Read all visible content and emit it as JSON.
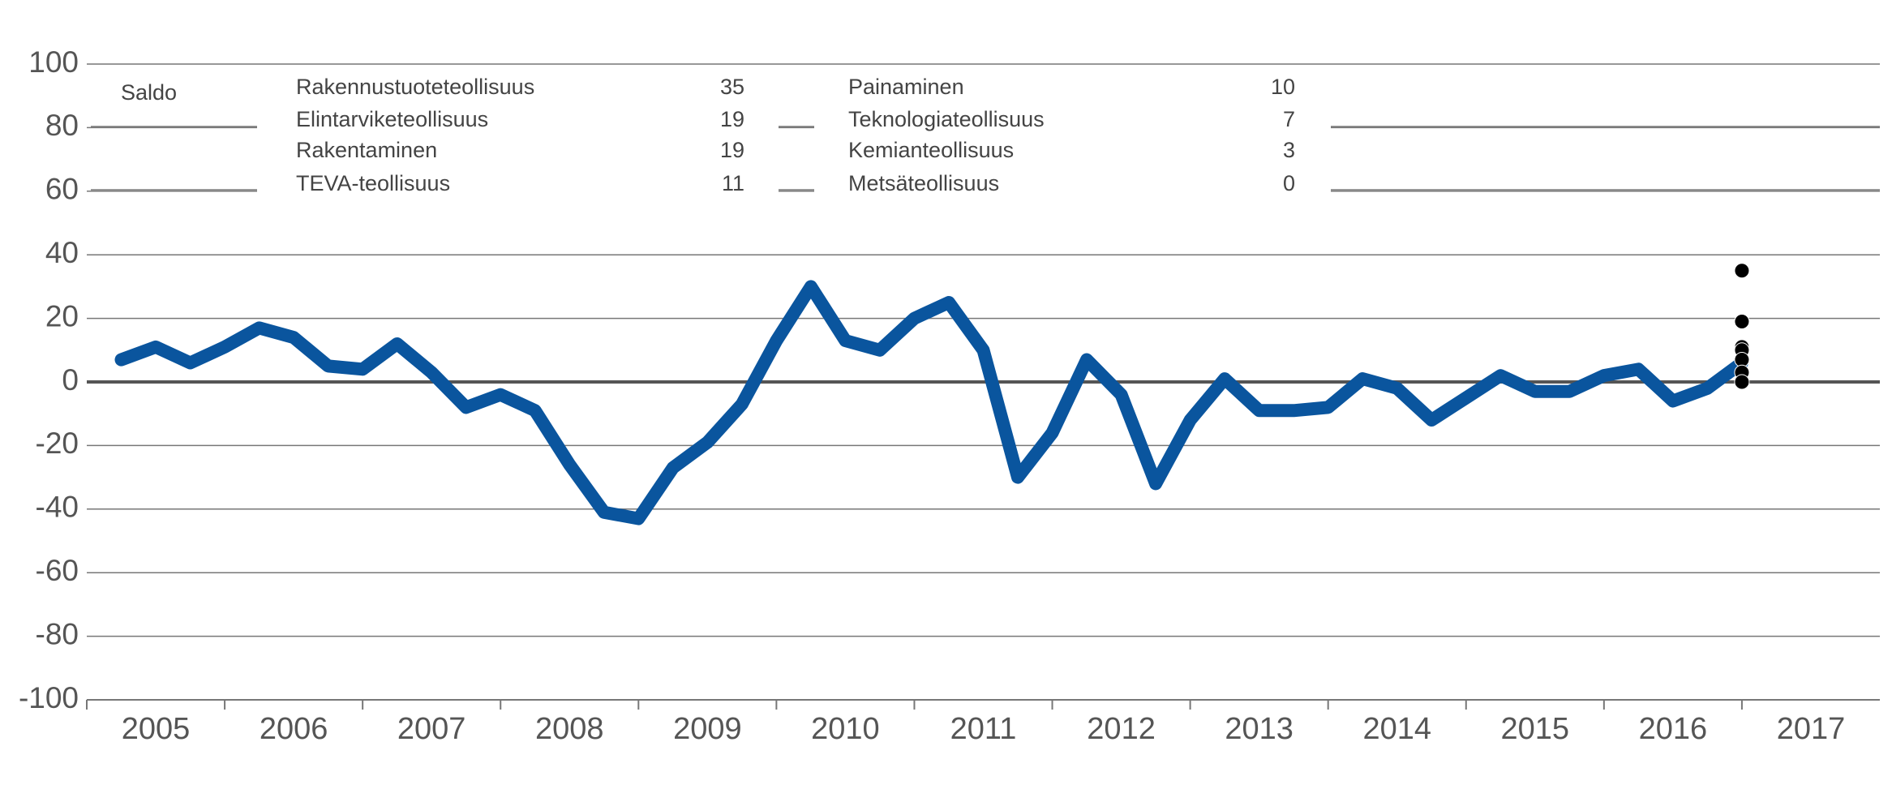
{
  "chart_data": {
    "type": "line",
    "y_label": "Saldo",
    "x": [
      2005.25,
      2005.5,
      2005.75,
      2006,
      2006.25,
      2006.5,
      2006.75,
      2007,
      2007.25,
      2007.5,
      2007.75,
      2008,
      2008.25,
      2008.5,
      2008.75,
      2009,
      2009.25,
      2009.5,
      2009.75,
      2010,
      2010.25,
      2010.5,
      2010.75,
      2011,
      2011.25,
      2011.5,
      2011.75,
      2012,
      2012.25,
      2012.5,
      2012.75,
      2013,
      2013.25,
      2013.5,
      2013.75,
      2014,
      2014.25,
      2014.5,
      2014.75,
      2015,
      2015.25,
      2015.5,
      2015.75,
      2016,
      2016.25,
      2016.5,
      2016.75,
      2017
    ],
    "series": [
      {
        "color": "#0a559e",
        "values": [
          7,
          11,
          6,
          11,
          17,
          14,
          5,
          4,
          12,
          3,
          -8,
          -4,
          -9,
          -26,
          -41,
          -43,
          -27,
          -19,
          -7,
          13,
          30,
          13,
          10,
          20,
          25,
          10,
          -30,
          -16,
          7,
          -4,
          -32,
          -12,
          1,
          -9,
          -9,
          -8,
          1,
          -2,
          -12,
          -5,
          2,
          -3,
          -3,
          2,
          4,
          -6,
          -2,
          6
        ]
      }
    ],
    "latest": {
      "x": 2017,
      "color": "#000000",
      "labels": [
        "Rakennustuoteteollisuus",
        "Elintarviketeollisuus",
        "Rakentaminen",
        "TEVA-teollisuus",
        "Painaminen",
        "Teknologiateollisuus",
        "Kemianteollisuus",
        "Metsäteollisuus"
      ],
      "values": [
        35,
        19,
        19,
        11,
        10,
        7,
        3,
        0
      ]
    },
    "xlim": [
      2005,
      2018
    ],
    "xticks": [
      2005,
      2006,
      2007,
      2008,
      2009,
      2010,
      2011,
      2012,
      2013,
      2014,
      2015,
      2016,
      2017
    ],
    "ylim": [
      -100,
      100
    ],
    "yticks": [
      -100,
      -80,
      -60,
      -40,
      -20,
      0,
      20,
      40,
      60,
      80,
      100
    ],
    "grid": true
  }
}
